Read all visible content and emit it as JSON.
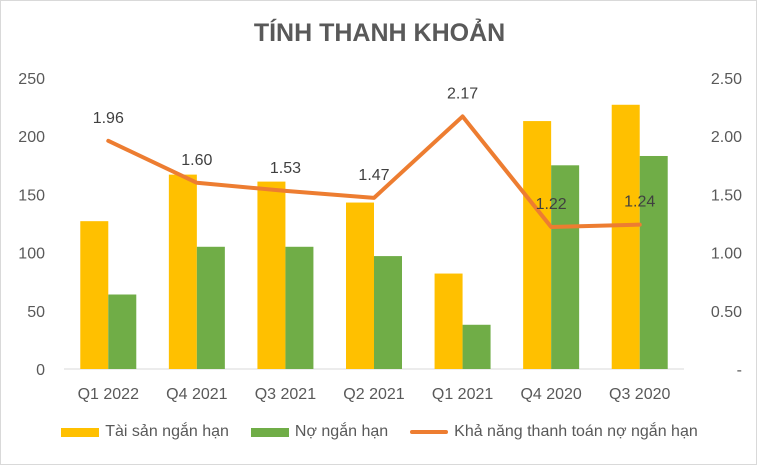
{
  "chart_data": {
    "type": "bar",
    "title": "TÍNH THANH KHOẢN",
    "categories": [
      "Q1 2022",
      "Q4 2021",
      "Q3 2021",
      "Q2 2021",
      "Q1 2021",
      "Q4 2020",
      "Q3 2020"
    ],
    "series": [
      {
        "name": "Tài sản ngắn hạn",
        "type": "bar",
        "axis": "left",
        "color": "#FFC000",
        "values": [
          127,
          167,
          161,
          143,
          82,
          213,
          227
        ]
      },
      {
        "name": "Nợ ngắn hạn",
        "type": "bar",
        "axis": "left",
        "color": "#70AD47",
        "values": [
          64,
          105,
          105,
          97,
          38,
          175,
          183
        ]
      },
      {
        "name": "Khả năng thanh toán nợ ngắn hạn",
        "type": "line",
        "axis": "right",
        "color": "#ED7D31",
        "values": [
          1.96,
          1.6,
          1.53,
          1.47,
          2.17,
          1.22,
          1.24
        ],
        "labels": [
          "1.96",
          "1.60",
          "1.53",
          "1.47",
          "2.17",
          "1.22",
          "1.24"
        ]
      }
    ],
    "ylim": [
      0,
      250
    ],
    "y2lim": [
      0,
      2.5
    ],
    "yticks": [
      "0",
      "50",
      "100",
      "150",
      "200",
      "250"
    ],
    "y2ticks": [
      "-",
      "0.50",
      "1.00",
      "1.50",
      "2.00",
      "2.50"
    ],
    "grid": false,
    "legend_position": "bottom"
  }
}
